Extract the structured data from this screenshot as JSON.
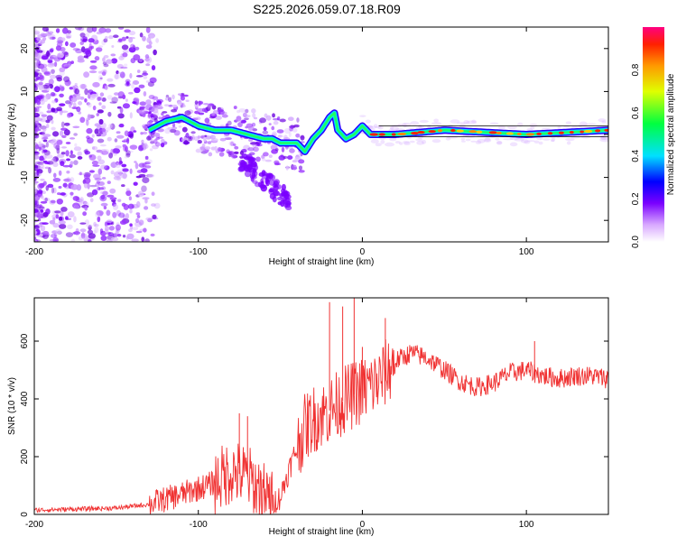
{
  "title": "S225.2026.059.07.18.R09",
  "chart_data": [
    {
      "type": "heatmap",
      "name": "spectrogram",
      "xlabel": "Height of straight line (km)",
      "ylabel": "Frequency (Hz)",
      "xlim": [
        -200,
        150
      ],
      "ylim": [
        -25,
        25
      ],
      "xticks": [
        "-200",
        "-100",
        "0",
        "100"
      ],
      "xtick_values": [
        -200,
        -100,
        0,
        100
      ],
      "yticks": [
        "20",
        "10",
        "0",
        "-10",
        "-20"
      ],
      "ytick_values": [
        20,
        10,
        0,
        -10,
        -20
      ],
      "colorbar": {
        "label": "Normalized spectral amplitude",
        "range": [
          0,
          1
        ],
        "ticks": [
          "0.0",
          "0.2",
          "0.4",
          "0.6",
          "0.8"
        ],
        "tick_values": [
          0.0,
          0.2,
          0.4,
          0.6,
          0.8
        ]
      },
      "ridge_description_points": {
        "x_km": [
          -130,
          -120,
          -110,
          -100,
          -90,
          -80,
          -70,
          -60,
          -55,
          -50,
          -45,
          -40,
          -35,
          -30,
          -25,
          -20,
          -17,
          -15,
          -10,
          -5,
          0,
          5,
          10,
          20,
          50,
          100,
          150
        ],
        "freq_hz": [
          1,
          3,
          4,
          2,
          1,
          1,
          0,
          -1,
          -1,
          -2,
          -2,
          -2,
          -4,
          -1,
          1,
          4,
          5,
          1,
          -1,
          0,
          2,
          0,
          0,
          0,
          1,
          0,
          1
        ]
      }
    },
    {
      "type": "line",
      "name": "snr",
      "xlabel": "Height of straight line (km)",
      "ylabel": "SNR (10 * v/v)",
      "xlim": [
        -200,
        150
      ],
      "ylim": [
        0,
        750
      ],
      "xticks": [
        "-200",
        "-100",
        "0",
        "100"
      ],
      "xtick_values": [
        -200,
        -100,
        0,
        100
      ],
      "yticks": [
        "0",
        "200",
        "400",
        "600"
      ],
      "ytick_values": [
        0,
        200,
        400,
        600
      ],
      "series_color": "#f03232",
      "envelope": {
        "x_km": [
          -200,
          -150,
          -130,
          -110,
          -90,
          -80,
          -70,
          -60,
          -55,
          -50,
          -45,
          -40,
          -35,
          -30,
          -20,
          -10,
          0,
          10,
          20,
          30,
          40,
          50,
          60,
          70,
          80,
          90,
          100,
          110,
          120,
          130,
          140,
          150
        ],
        "snr_mean": [
          15,
          22,
          35,
          70,
          110,
          150,
          130,
          70,
          40,
          60,
          150,
          230,
          300,
          330,
          360,
          400,
          430,
          460,
          530,
          560,
          540,
          500,
          460,
          440,
          455,
          490,
          500,
          480,
          470,
          480,
          480,
          470
        ],
        "spikes": [
          {
            "x": -20,
            "y": 735
          },
          {
            "x": -12,
            "y": 720
          },
          {
            "x": -5,
            "y": 760
          },
          {
            "x": 0,
            "y": 580
          },
          {
            "x": 14,
            "y": 680
          },
          {
            "x": -70,
            "y": 340
          },
          {
            "x": -75,
            "y": 350
          },
          {
            "x": 105,
            "y": 600
          }
        ]
      }
    }
  ]
}
